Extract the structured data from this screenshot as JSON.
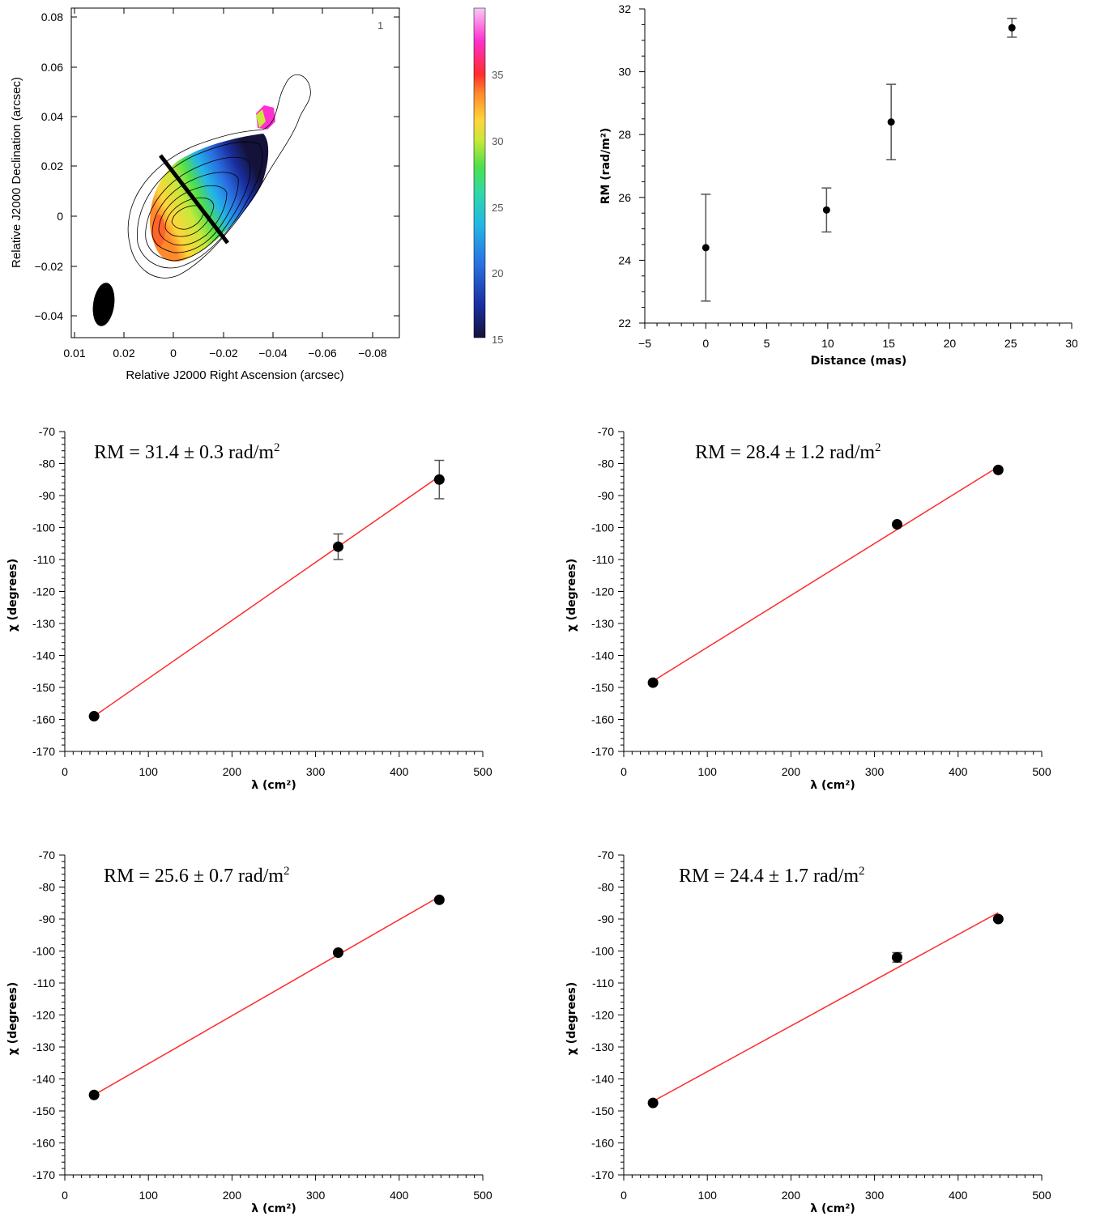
{
  "chart_data": [
    {
      "id": "map",
      "type": "heatmap",
      "xlabel": "Relative J2000 Right Ascension (arcsec)",
      "ylabel": "Relative J2000 Declination (arcsec)",
      "xticks": [
        "0.01",
        "0.02",
        "0",
        "−0.02",
        "−0.04",
        "−0.06",
        "−0.08"
      ],
      "yticks": [
        "0.08",
        "0.06",
        "0.04",
        "0.02",
        "0",
        "−0.02",
        "−0.04"
      ],
      "corner_label": "1",
      "colorbar_ticks": [
        "35",
        "30",
        "25",
        "20",
        "15"
      ],
      "colorbar_range": [
        15,
        40
      ],
      "colors": [
        "#14123a",
        "#1a2fa0",
        "#2a6fe0",
        "#23b5e8",
        "#2fd9a6",
        "#4fe04b",
        "#c8e83a",
        "#ffd53a",
        "#ff8a2b",
        "#ff2d2d",
        "#ff2fd0",
        "#f6c9f4"
      ]
    },
    {
      "id": "rm-vs-distance",
      "type": "scatter",
      "xlabel": "Distance (mas)",
      "ylabel": "RM (rad/m²)",
      "xlim": [
        -5,
        30
      ],
      "ylim": [
        22,
        32
      ],
      "xticks": [
        -5,
        0,
        5,
        10,
        15,
        20,
        25,
        30
      ],
      "yticks": [
        22,
        24,
        26,
        28,
        30,
        32
      ],
      "x": [
        0,
        9.9,
        15.2,
        25.1
      ],
      "y": [
        24.4,
        25.6,
        28.4,
        31.4
      ],
      "err": [
        1.7,
        0.7,
        1.2,
        0.3
      ]
    },
    {
      "id": "fit-1",
      "type": "scatter",
      "annotation": "RM = 31.4 ± 0.3 rad/m²",
      "xlabel": "λ (cm²)",
      "ylabel": "χ (degrees)",
      "xlim": [
        0,
        500
      ],
      "ylim": [
        -170,
        -70
      ],
      "x": [
        35,
        327,
        448
      ],
      "y": [
        -159,
        -106,
        -85
      ],
      "err": [
        0.5,
        4,
        6
      ],
      "fit": [
        [
          35,
          -159
        ],
        [
          448,
          -84
        ]
      ]
    },
    {
      "id": "fit-2",
      "type": "scatter",
      "annotation": "RM = 28.4 ± 1.2 rad/m²",
      "xlabel": "λ (cm²)",
      "ylabel": "χ (degrees)",
      "xlim": [
        0,
        500
      ],
      "ylim": [
        -170,
        -70
      ],
      "x": [
        35,
        327,
        448
      ],
      "y": [
        -148.5,
        -99,
        -82
      ],
      "err": [
        0.5,
        0.5,
        0.5
      ],
      "fit": [
        [
          35,
          -148
        ],
        [
          448,
          -81
        ]
      ]
    },
    {
      "id": "fit-3",
      "type": "scatter",
      "annotation": "RM = 25.6 ± 0.7 rad/m²",
      "xlabel": "λ (cm²)",
      "ylabel": "χ (degrees)",
      "xlim": [
        0,
        500
      ],
      "ylim": [
        -170,
        -70
      ],
      "x": [
        35,
        327,
        448
      ],
      "y": [
        -145,
        -100.5,
        -84
      ],
      "err": [
        0.5,
        0.5,
        0.5
      ],
      "fit": [
        [
          35,
          -145
        ],
        [
          448,
          -83
        ]
      ]
    },
    {
      "id": "fit-4",
      "type": "scatter",
      "annotation": "RM = 24.4 ± 1.7 rad/m²",
      "xlabel": "λ (cm²)",
      "ylabel": "χ (degrees)",
      "xlim": [
        0,
        500
      ],
      "ylim": [
        -170,
        -70
      ],
      "x": [
        35,
        327,
        448
      ],
      "y": [
        -147.5,
        -102,
        -90
      ],
      "err": [
        0.5,
        1.5,
        0.5
      ],
      "fit": [
        [
          35,
          -147
        ],
        [
          448,
          -88
        ]
      ]
    }
  ]
}
